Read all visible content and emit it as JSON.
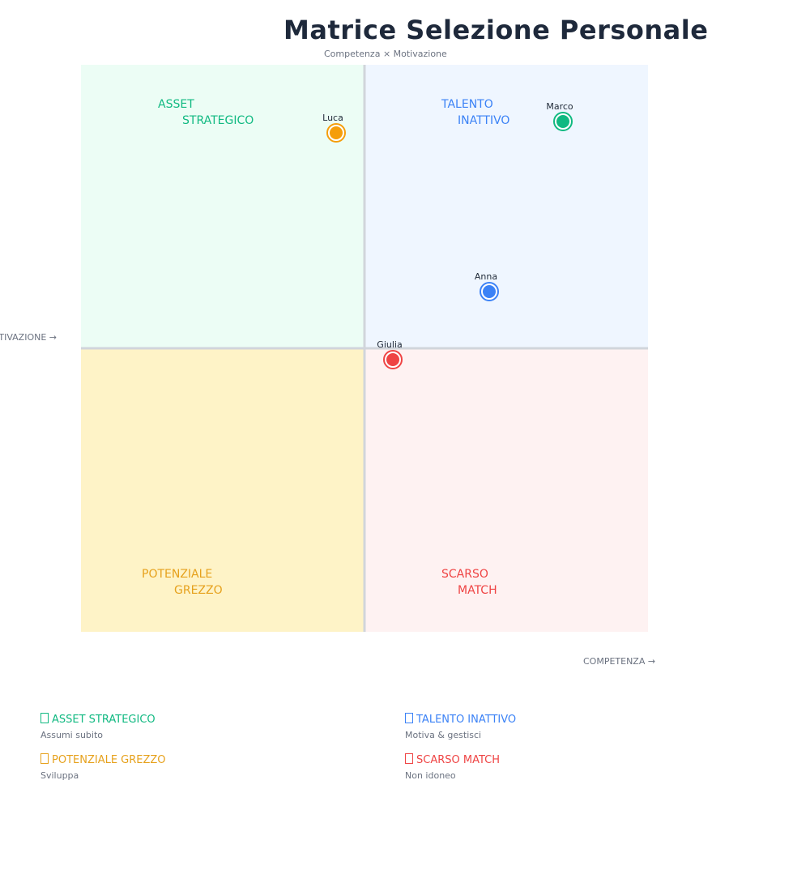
{
  "chart_data": {
    "type": "scatter",
    "title": "Matrice Selezione Personale",
    "subtitle": "Competenza × Motivazione",
    "xlabel": "COMPETENZA →",
    "ylabel": "MOTIVAZIONE →",
    "xlim": [
      0,
      10
    ],
    "ylim": [
      0,
      10
    ],
    "grid": false,
    "quadrants": [
      {
        "key": "tl",
        "label_lines": [
          "ASSET",
          "STRATEGICO"
        ],
        "color": "#10b981",
        "fill": "#ecfdf5"
      },
      {
        "key": "tr",
        "label_lines": [
          "TALENTO",
          "INATTIVO"
        ],
        "color": "#3b82f6",
        "fill": "#eff6ff"
      },
      {
        "key": "bl",
        "label_lines": [
          "POTENZIALE",
          "GREZZO"
        ],
        "color": "#e6a11c",
        "fill": "#fef3c7"
      },
      {
        "key": "br",
        "label_lines": [
          "SCARSO",
          "MATCH"
        ],
        "color": "#ef4444",
        "fill": "#fef2f2"
      }
    ],
    "points": [
      {
        "name": "Luca",
        "x": 4.5,
        "y": 8.8,
        "color": "#f59e0b"
      },
      {
        "name": "Marco",
        "x": 8.5,
        "y": 9.0,
        "color": "#10b981"
      },
      {
        "name": "Anna",
        "x": 7.2,
        "y": 6.0,
        "color": "#3b82f6"
      },
      {
        "name": "Giulia",
        "x": 5.5,
        "y": 4.8,
        "color": "#ef4444"
      }
    ]
  },
  "legend": [
    {
      "title": "ASSET STRATEGICO",
      "desc": "Assumi subito",
      "color": "#10b981"
    },
    {
      "title": "TALENTO INATTIVO",
      "desc": "Motiva & gestisci",
      "color": "#3b82f6"
    },
    {
      "title": "POTENZIALE GREZZO",
      "desc": "Sviluppa",
      "color": "#e6a11c"
    },
    {
      "title": "SCARSO MATCH",
      "desc": "Non idoneo",
      "color": "#ef4444"
    }
  ]
}
